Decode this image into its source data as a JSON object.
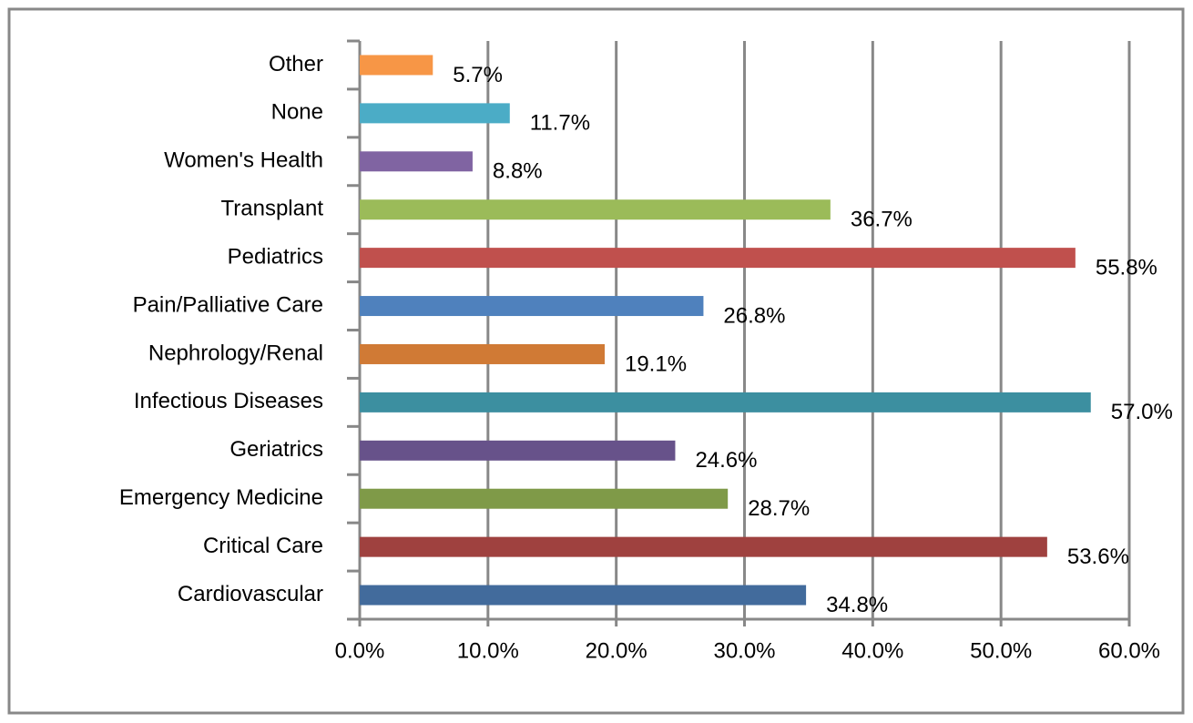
{
  "chart_data": {
    "type": "bar",
    "orientation": "horizontal",
    "categories": [
      "Other",
      "None",
      "Women's Health",
      "Transplant",
      "Pediatrics",
      "Pain/Palliative Care",
      "Nephrology/Renal",
      "Infectious Diseases",
      "Geriatrics",
      "Emergency Medicine",
      "Critical Care",
      "Cardiovascular"
    ],
    "values": [
      5.7,
      11.7,
      8.8,
      36.7,
      55.8,
      26.8,
      19.1,
      57.0,
      24.6,
      28.7,
      53.6,
      34.8
    ],
    "value_labels": [
      "5.7%",
      "11.7%",
      "8.8%",
      "36.7%",
      "55.8%",
      "26.8%",
      "19.1%",
      "57.0%",
      "24.6%",
      "28.7%",
      "53.6%",
      "34.8%"
    ],
    "colors": [
      "#f79646",
      "#4bacc6",
      "#8064a2",
      "#9bbb59",
      "#c0504d",
      "#4f81bd",
      "#d07a35",
      "#3c8fa0",
      "#67528a",
      "#7f9a48",
      "#9f413f",
      "#426b9c"
    ],
    "xlim": [
      0,
      60
    ],
    "xticks": [
      {
        "value": 0,
        "label": "0.0%"
      },
      {
        "value": 10,
        "label": "10.0%"
      },
      {
        "value": 20,
        "label": "20.0%"
      },
      {
        "value": 30,
        "label": "30.0%"
      },
      {
        "value": 40,
        "label": "40.0%"
      },
      {
        "value": 50,
        "label": "50.0%"
      },
      {
        "value": 60,
        "label": "60.0%"
      }
    ],
    "grid": true
  }
}
